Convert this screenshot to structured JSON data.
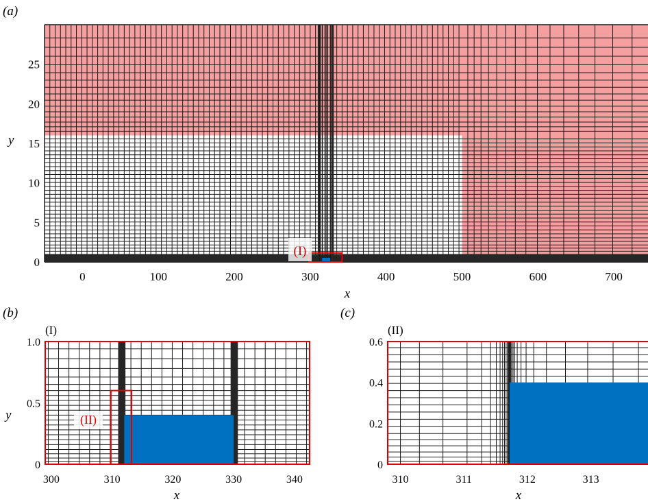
{
  "panels": {
    "a": {
      "label": "(a)",
      "xlabel": "x",
      "ylabel": "y",
      "x_ticks": [
        "0",
        "100",
        "200",
        "300",
        "400",
        "500",
        "600",
        "700"
      ],
      "y_ticks": [
        "0",
        "5",
        "10",
        "15",
        "20",
        "25"
      ],
      "inset_label": "(I)"
    },
    "b": {
      "label": "(b)",
      "title": "(I)",
      "xlabel": "x",
      "ylabel": "y",
      "x_ticks": [
        "300",
        "310",
        "320",
        "330",
        "340"
      ],
      "y_ticks": [
        "0",
        "0.5",
        "1.0"
      ],
      "inset_label": "(II)"
    },
    "c": {
      "label": "(c)",
      "title": "(II)",
      "xlabel": "x",
      "y_ticks": [
        "0",
        "0.2",
        "0.4",
        "0.6"
      ],
      "x_ticks": [
        "310",
        "311",
        "312",
        "313"
      ]
    }
  },
  "colors": {
    "sponge_layer": "#f4a0a0",
    "obstacle": "#0070c0",
    "grid_line": "#1a1a1a",
    "highlight_box": "#e00000",
    "inset_label_text": "#e00000"
  },
  "chart_data": [
    {
      "type": "heatmap",
      "panel": "a",
      "xlim": [
        -50,
        745
      ],
      "ylim": [
        0,
        30
      ],
      "x_ticks": [
        0,
        100,
        200,
        300,
        400,
        500,
        600,
        700
      ],
      "y_ticks": [
        0,
        5,
        10,
        15,
        20,
        25
      ],
      "sponge_layer_regions": [
        {
          "x": [
            -50,
            745
          ],
          "y": [
            16,
            30
          ]
        },
        {
          "x": [
            500,
            745
          ],
          "y": [
            0,
            16
          ]
        }
      ],
      "refined_columns_x": [
        [
          310,
          312.5
        ],
        [
          328.5,
          331
        ]
      ],
      "obstacle": {
        "x": [
          312,
          330
        ],
        "y": [
          0,
          0.4
        ]
      },
      "highlight_region": {
        "x": [
          298,
          342
        ],
        "y": [
          0,
          1
        ]
      }
    },
    {
      "type": "heatmap",
      "panel": "b",
      "xlim": [
        299,
        342.5
      ],
      "ylim": [
        0,
        1
      ],
      "x_ticks": [
        300,
        310,
        320,
        330,
        340
      ],
      "y_ticks": [
        0,
        0.5,
        1.0
      ],
      "refined_columns_x": [
        [
          311,
          312.2
        ],
        [
          329.5,
          330.7
        ]
      ],
      "obstacle": {
        "x": [
          312,
          330
        ],
        "y": [
          0,
          0.4
        ]
      },
      "highlight_region": {
        "x": [
          309.8,
          313.2
        ],
        "y": [
          0,
          0.6
        ]
      }
    },
    {
      "type": "heatmap",
      "panel": "c",
      "xlim": [
        309.8,
        313.9
      ],
      "ylim": [
        0,
        0.6
      ],
      "x_ticks": [
        310,
        311,
        312,
        313
      ],
      "y_ticks": [
        0,
        0.2,
        0.4,
        0.6
      ],
      "obstacle": {
        "x": [
          311.72,
          313.9
        ],
        "y": [
          0,
          0.4
        ]
      }
    }
  ]
}
